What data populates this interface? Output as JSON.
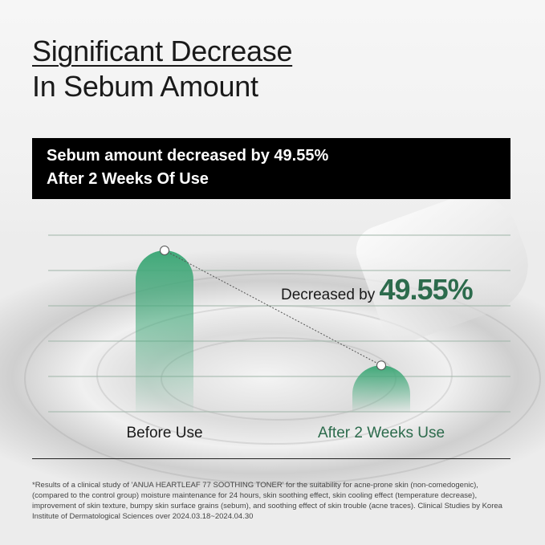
{
  "title": {
    "line1": "Significant Decrease",
    "line2": "In Sebum Amount"
  },
  "banner": {
    "text_prefix": "Sebum amount decreased by ",
    "percent": "49.55%",
    "line2": "After 2 Weeks Of Use"
  },
  "annotation": {
    "prefix": "Decreased by ",
    "value": "49.55%"
  },
  "chart_data": {
    "type": "bar",
    "categories": [
      "Before Use",
      "After 2 Weeks Use"
    ],
    "values": [
      100,
      50.45
    ],
    "title": "",
    "xlabel": "",
    "ylabel": "",
    "ylim": [
      0,
      110
    ],
    "grid": true,
    "colors": {
      "bar": "#3fa878",
      "before_label": "#1a1a1a",
      "after_label": "#2c6b4c",
      "annotation": "#2c6b4c"
    }
  },
  "footer": "*Results of a clinical study of 'ANUA HEARTLEAF 77 SOOTHING TONER' for the suitability for acne-prone skin (non-comedogenic), (compared to the control group) moisture maintenance for 24 hours, skin soothing effect, skin cooling effect (temperature decrease), improvement of skin texture, bumpy skin surface grains (sebum), and soothing effect of skin trouble (acne traces). Clinical Studies by Korea Institute of Dermatological Sciences over 2024.03.18~2024.04.30"
}
